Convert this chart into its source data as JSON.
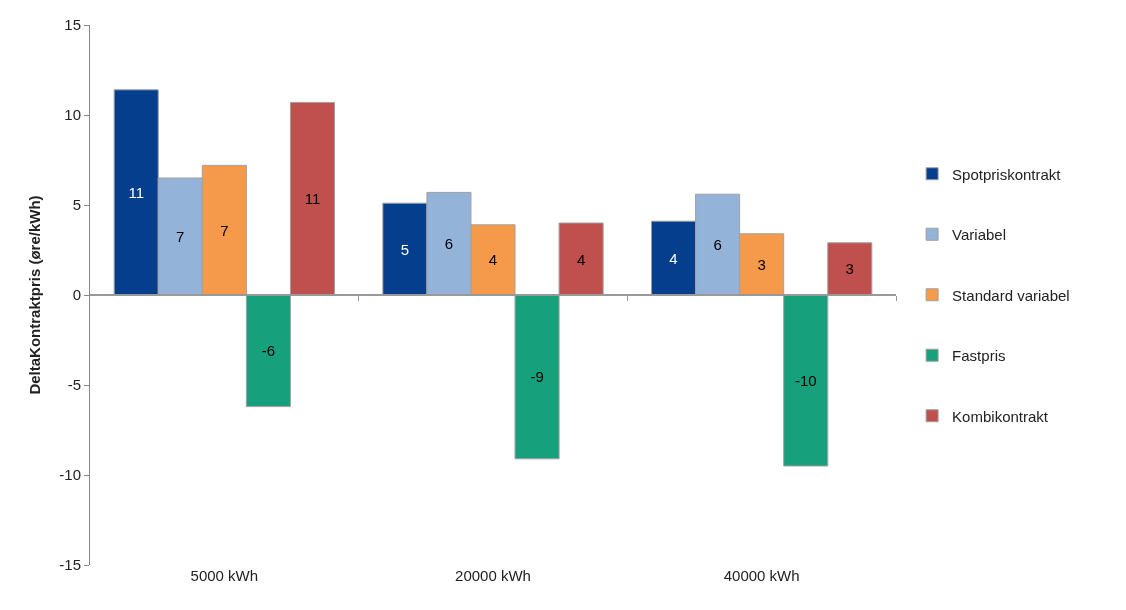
{
  "chart_data": {
    "type": "bar",
    "ylabel": "DeltaKontraktpris (øre/kWh)",
    "categories": [
      "5000 kWh",
      "20000 kWh",
      "40000 kWh"
    ],
    "series": [
      {
        "name": "Spotpriskontrakt",
        "color": "#063e8e",
        "values": [
          11.4,
          5.1,
          4.1
        ],
        "value_labels": [
          "11",
          "5",
          "4"
        ]
      },
      {
        "name": "Variabel",
        "color": "#94b3d8",
        "values": [
          6.5,
          5.7,
          5.6
        ],
        "value_labels": [
          "7",
          "6",
          "6"
        ]
      },
      {
        "name": "Standard variabel",
        "color": "#f59a4a",
        "values": [
          7.2,
          3.9,
          3.4
        ],
        "value_labels": [
          "7",
          "4",
          "3"
        ]
      },
      {
        "name": "Fastpris",
        "color": "#16a17c",
        "values": [
          -6.2,
          -9.1,
          -9.5
        ],
        "value_labels": [
          "-6",
          "-9",
          "-10"
        ]
      },
      {
        "name": "Kombikontrakt",
        "color": "#c0504d",
        "values": [
          10.7,
          4.0,
          2.9
        ],
        "value_labels": [
          "11",
          "4",
          "3"
        ]
      }
    ],
    "ylim": [
      -15,
      15
    ],
    "yticks": [
      -15,
      -10,
      -5,
      0,
      5,
      10,
      15
    ],
    "legend": "right"
  }
}
